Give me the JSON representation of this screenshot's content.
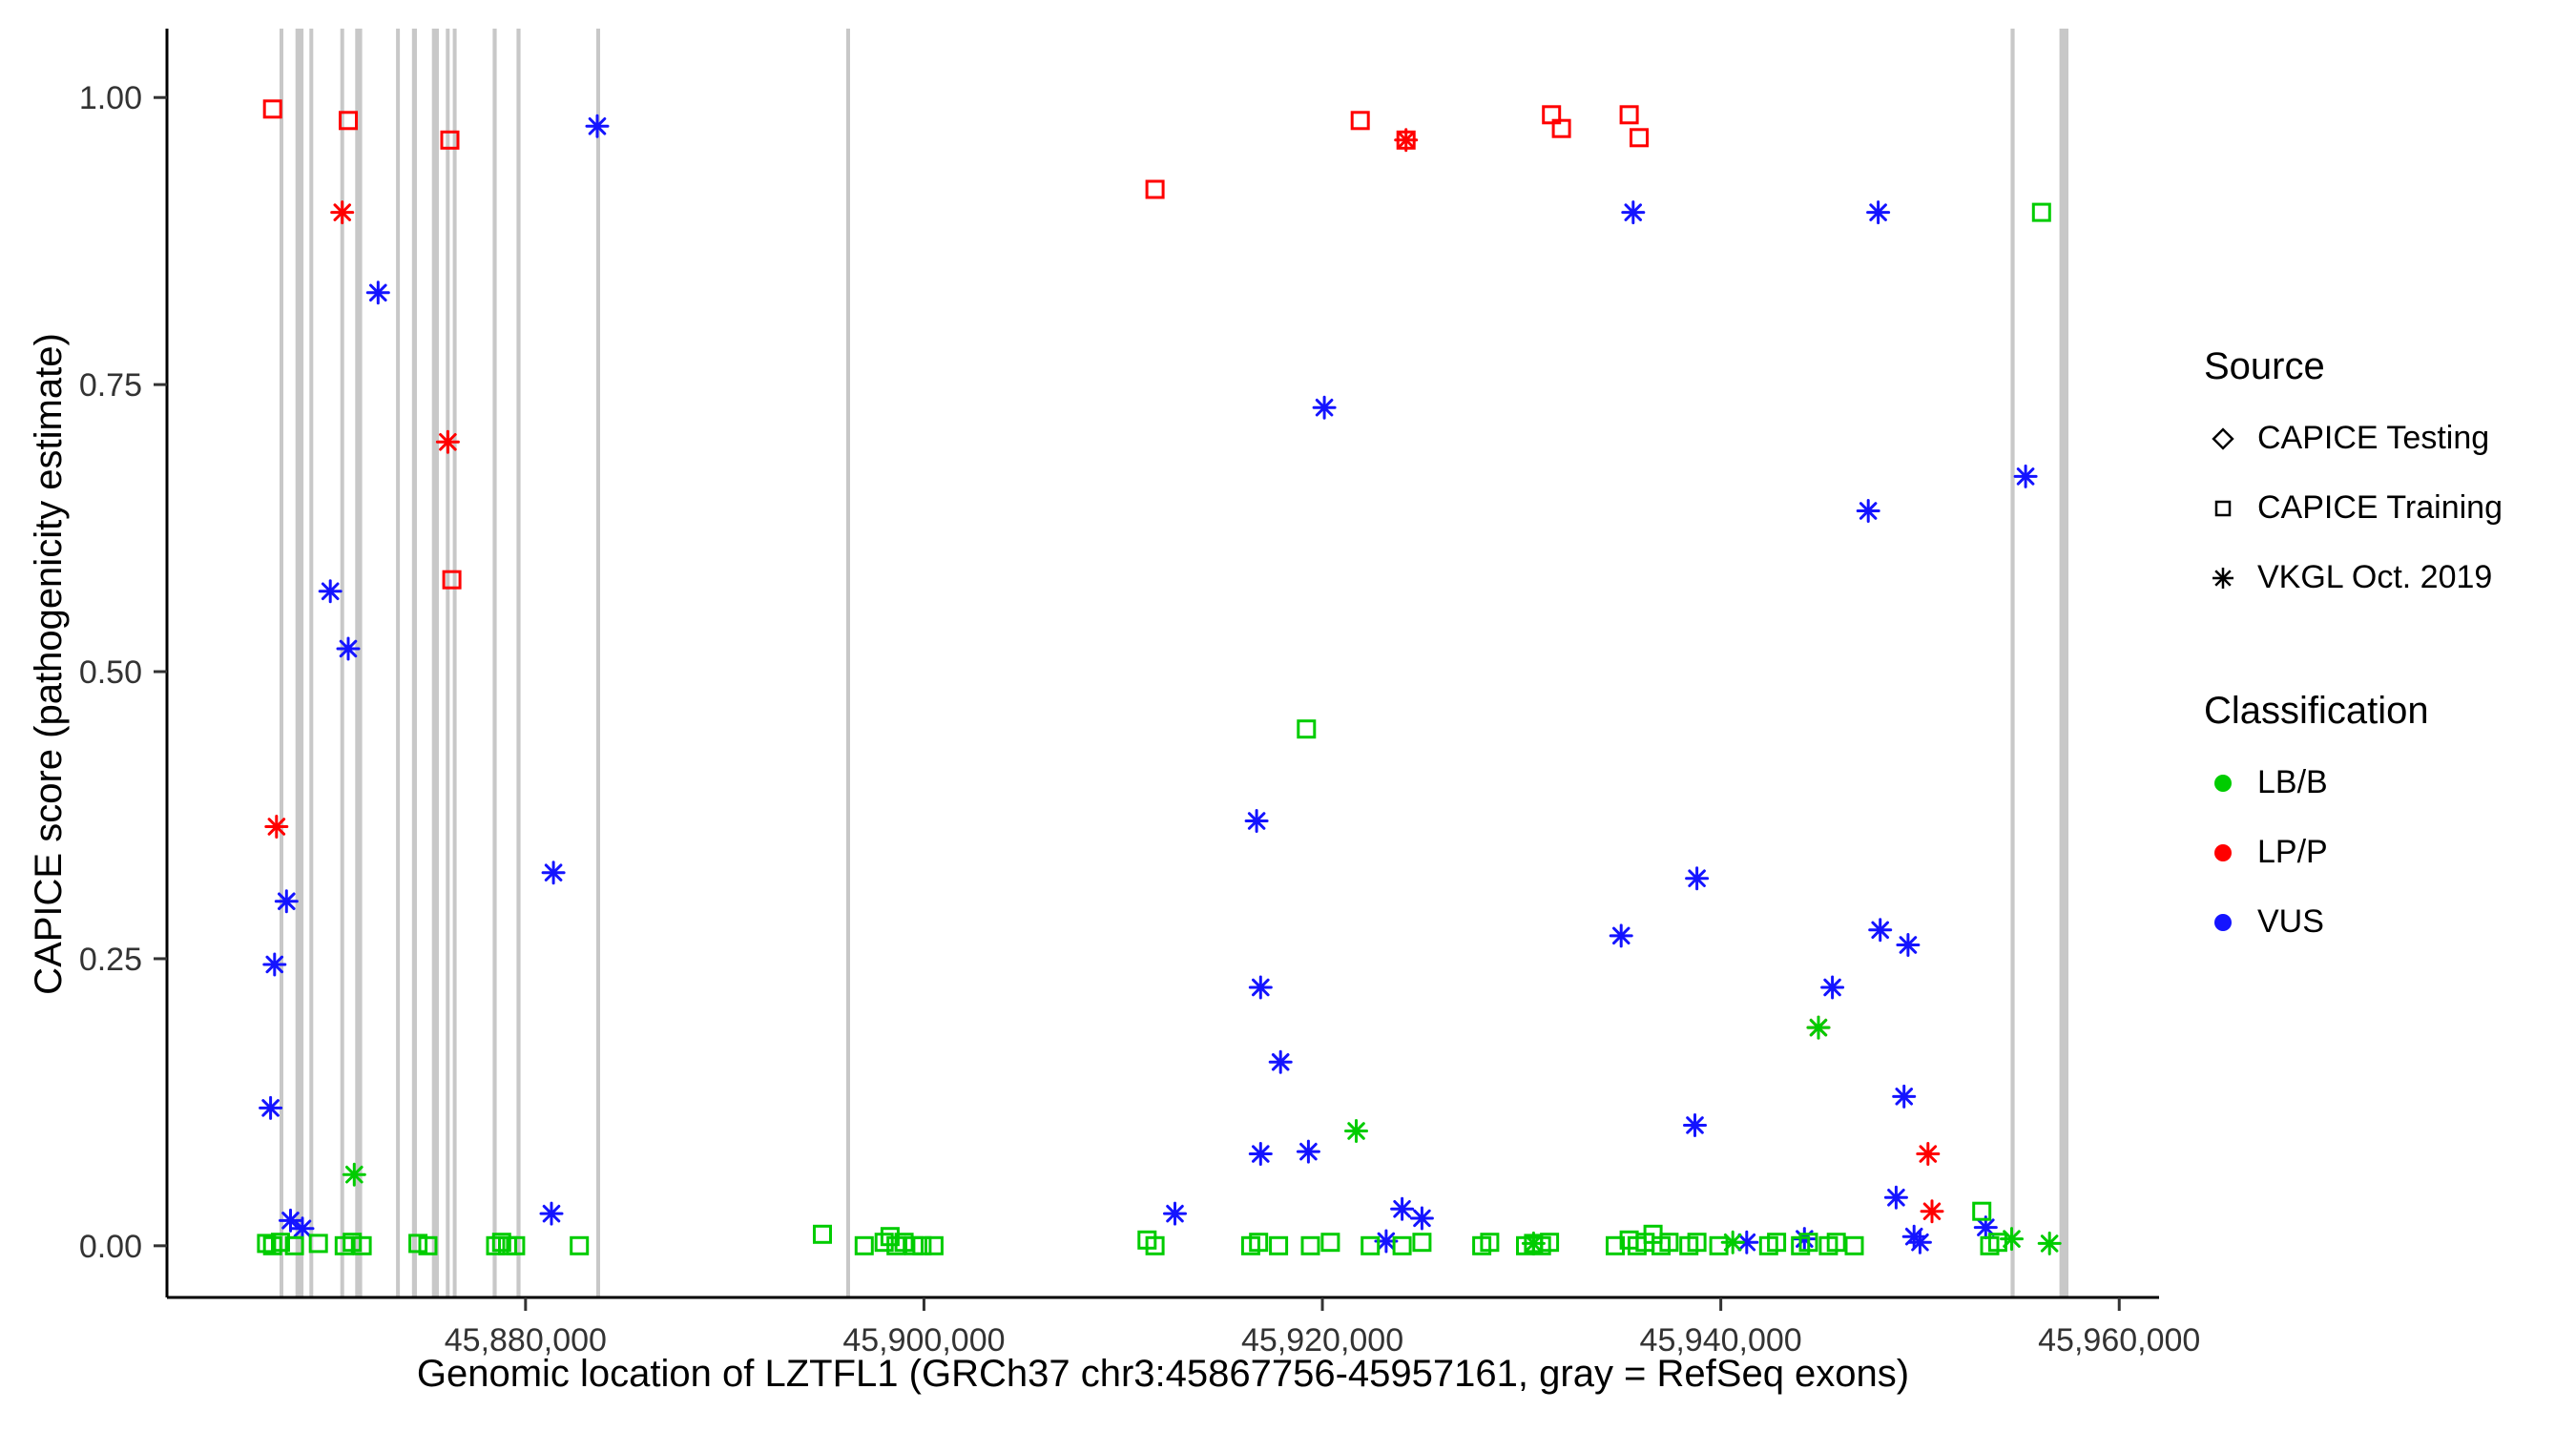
{
  "chart_data": {
    "type": "scatter",
    "title": "",
    "xlabel": "Genomic location of LZTFL1 (GRCh37 chr3:45867756-45957161, gray = RefSeq exons)",
    "ylabel": "CAPICE score (pathogenicity estimate)",
    "xlim": [
      45862000,
      45962000
    ],
    "ylim": [
      -0.045,
      1.06
    ],
    "grid": false,
    "legend_position": "right",
    "exon_color": "#C8C8C8",
    "x_ticks": [
      {
        "value": 45880000,
        "label": "45,880,000"
      },
      {
        "value": 45900000,
        "label": "45,900,000"
      },
      {
        "value": 45920000,
        "label": "45,920,000"
      },
      {
        "value": 45940000,
        "label": "45,940,000"
      },
      {
        "value": 45960000,
        "label": "45,960,000"
      }
    ],
    "y_ticks": [
      {
        "value": 0.0,
        "label": "0.00"
      },
      {
        "value": 0.25,
        "label": "0.25"
      },
      {
        "value": 0.5,
        "label": "0.50"
      },
      {
        "value": 0.75,
        "label": "0.75"
      },
      {
        "value": 1.0,
        "label": "1.00"
      }
    ],
    "exons": [
      {
        "start": 45867650,
        "end": 45867800
      },
      {
        "start": 45868450,
        "end": 45868850
      },
      {
        "start": 45869150,
        "end": 45869300
      },
      {
        "start": 45870700,
        "end": 45870850
      },
      {
        "start": 45871450,
        "end": 45871800
      },
      {
        "start": 45873500,
        "end": 45873650
      },
      {
        "start": 45874300,
        "end": 45874550
      },
      {
        "start": 45875300,
        "end": 45875650
      },
      {
        "start": 45876000,
        "end": 45876150
      },
      {
        "start": 45876350,
        "end": 45876500
      },
      {
        "start": 45878350,
        "end": 45878550
      },
      {
        "start": 45879550,
        "end": 45879750
      },
      {
        "start": 45883550,
        "end": 45883700
      },
      {
        "start": 45896100,
        "end": 45896250
      },
      {
        "start": 45954550,
        "end": 45954750
      },
      {
        "start": 45957000,
        "end": 45957450
      }
    ],
    "series": [
      {
        "name": "CAPICE Training / LP-P",
        "source": "CAPICE Training",
        "classification": "LP/P",
        "shape": "square",
        "color": "#FF0000",
        "points": [
          [
            45867300,
            0.99
          ],
          [
            45871100,
            0.98
          ],
          [
            45876200,
            0.963
          ],
          [
            45876300,
            0.58
          ],
          [
            45911600,
            0.92
          ],
          [
            45921900,
            0.98
          ],
          [
            45924200,
            0.963
          ],
          [
            45931500,
            0.985
          ],
          [
            45932000,
            0.973
          ],
          [
            45935400,
            0.985
          ],
          [
            45935900,
            0.965
          ]
        ]
      },
      {
        "name": "VKGL Oct. 2019 / LP-P",
        "source": "VKGL Oct. 2019",
        "classification": "LP/P",
        "shape": "asterisk",
        "color": "#FF0000",
        "points": [
          [
            45870800,
            0.9
          ],
          [
            45867500,
            0.365
          ],
          [
            45876100,
            0.7
          ],
          [
            45924200,
            0.963
          ],
          [
            45944900,
            0.19
          ],
          [
            45950400,
            0.08
          ],
          [
            45950600,
            0.03
          ]
        ]
      },
      {
        "name": "VKGL Oct. 2019 / VUS",
        "source": "VKGL Oct. 2019",
        "classification": "VUS",
        "shape": "asterisk",
        "color": "#1414FF",
        "points": [
          [
            45883600,
            0.975
          ],
          [
            45872600,
            0.83
          ],
          [
            45870200,
            0.57
          ],
          [
            45871100,
            0.52
          ],
          [
            45868000,
            0.3
          ],
          [
            45867400,
            0.245
          ],
          [
            45867200,
            0.12
          ],
          [
            45868200,
            0.022
          ],
          [
            45868800,
            0.015
          ],
          [
            45881400,
            0.325
          ],
          [
            45881300,
            0.028
          ],
          [
            45920100,
            0.73
          ],
          [
            45916700,
            0.37
          ],
          [
            45916900,
            0.225
          ],
          [
            45917900,
            0.16
          ],
          [
            45916900,
            0.08
          ],
          [
            45919300,
            0.082
          ],
          [
            45912600,
            0.028
          ],
          [
            45935600,
            0.9
          ],
          [
            45938800,
            0.32
          ],
          [
            45935000,
            0.27
          ],
          [
            45938700,
            0.105
          ],
          [
            45945600,
            0.225
          ],
          [
            45947400,
            0.64
          ],
          [
            45947900,
            0.9
          ],
          [
            45948000,
            0.275
          ],
          [
            45949400,
            0.262
          ],
          [
            45949200,
            0.13
          ],
          [
            45924000,
            0.032
          ],
          [
            45925000,
            0.024
          ],
          [
            45948800,
            0.042
          ],
          [
            45949700,
            0.008
          ],
          [
            45953300,
            0.016
          ],
          [
            45955300,
            0.67
          ],
          [
            45923200,
            0.004
          ],
          [
            45944200,
            0.006
          ],
          [
            45941300,
            0.003
          ],
          [
            45950000,
            0.003
          ]
        ]
      },
      {
        "name": "VKGL Oct. 2019 / LB-B",
        "source": "VKGL Oct. 2019",
        "classification": "LB/B",
        "shape": "asterisk",
        "color": "#00CC00",
        "points": [
          [
            45871400,
            0.062
          ],
          [
            45921700,
            0.1
          ],
          [
            45944900,
            0.19
          ],
          [
            45954600,
            0.006
          ],
          [
            45956500,
            0.002
          ],
          [
            45930600,
            0.002
          ],
          [
            45940600,
            0.003
          ]
        ]
      },
      {
        "name": "CAPICE Training / LB-B",
        "source": "CAPICE Training",
        "classification": "LB/B",
        "shape": "square",
        "color": "#00CC00",
        "points": [
          [
            45867000,
            0.002
          ],
          [
            45867300,
            0.0
          ],
          [
            45867700,
            0.003
          ],
          [
            45868400,
            0.0
          ],
          [
            45869600,
            0.002
          ],
          [
            45870900,
            0.0
          ],
          [
            45871300,
            0.003
          ],
          [
            45871800,
            0.0
          ],
          [
            45874600,
            0.002
          ],
          [
            45875100,
            0.0
          ],
          [
            45878500,
            0.0
          ],
          [
            45878800,
            0.003
          ],
          [
            45879100,
            0.0
          ],
          [
            45879500,
            0.0
          ],
          [
            45882700,
            0.0
          ],
          [
            45894900,
            0.01
          ],
          [
            45897000,
            0.0
          ],
          [
            45898000,
            0.003
          ],
          [
            45898300,
            0.008
          ],
          [
            45898600,
            0.0
          ],
          [
            45899000,
            0.003
          ],
          [
            45899500,
            0.0
          ],
          [
            45899900,
            0.0
          ],
          [
            45900500,
            0.0
          ],
          [
            45911200,
            0.005
          ],
          [
            45911600,
            0.0
          ],
          [
            45916400,
            0.0
          ],
          [
            45916800,
            0.003
          ],
          [
            45917800,
            0.0
          ],
          [
            45919200,
            0.45
          ],
          [
            45919400,
            0.0
          ],
          [
            45920400,
            0.003
          ],
          [
            45922400,
            0.0
          ],
          [
            45924000,
            0.0
          ],
          [
            45925000,
            0.003
          ],
          [
            45928000,
            0.0
          ],
          [
            45928400,
            0.003
          ],
          [
            45930200,
            0.0
          ],
          [
            45930600,
            0.002
          ],
          [
            45931000,
            0.0
          ],
          [
            45931400,
            0.003
          ],
          [
            45934700,
            0.0
          ],
          [
            45935400,
            0.005
          ],
          [
            45935800,
            0.0
          ],
          [
            45936200,
            0.003
          ],
          [
            45936600,
            0.01
          ],
          [
            45937000,
            0.0
          ],
          [
            45937400,
            0.003
          ],
          [
            45938400,
            0.0
          ],
          [
            45938800,
            0.003
          ],
          [
            45939900,
            0.0
          ],
          [
            45942400,
            0.0
          ],
          [
            45942800,
            0.003
          ],
          [
            45944000,
            0.0
          ],
          [
            45944400,
            0.003
          ],
          [
            45945400,
            0.0
          ],
          [
            45945800,
            0.003
          ],
          [
            45946700,
            0.0
          ],
          [
            45953100,
            0.03
          ],
          [
            45953500,
            0.0
          ],
          [
            45953900,
            0.003
          ],
          [
            45956100,
            0.9
          ]
        ]
      }
    ]
  },
  "legend": {
    "source_title": "Source",
    "source_items": [
      {
        "label": "CAPICE Testing",
        "shape": "diamond"
      },
      {
        "label": "CAPICE Training",
        "shape": "square"
      },
      {
        "label": "VKGL Oct. 2019",
        "shape": "asterisk"
      }
    ],
    "classification_title": "Classification",
    "classification_items": [
      {
        "label": "LB/B",
        "color": "#00CC00"
      },
      {
        "label": "LP/P",
        "color": "#FF0000"
      },
      {
        "label": "VUS",
        "color": "#1414FF"
      }
    ]
  }
}
